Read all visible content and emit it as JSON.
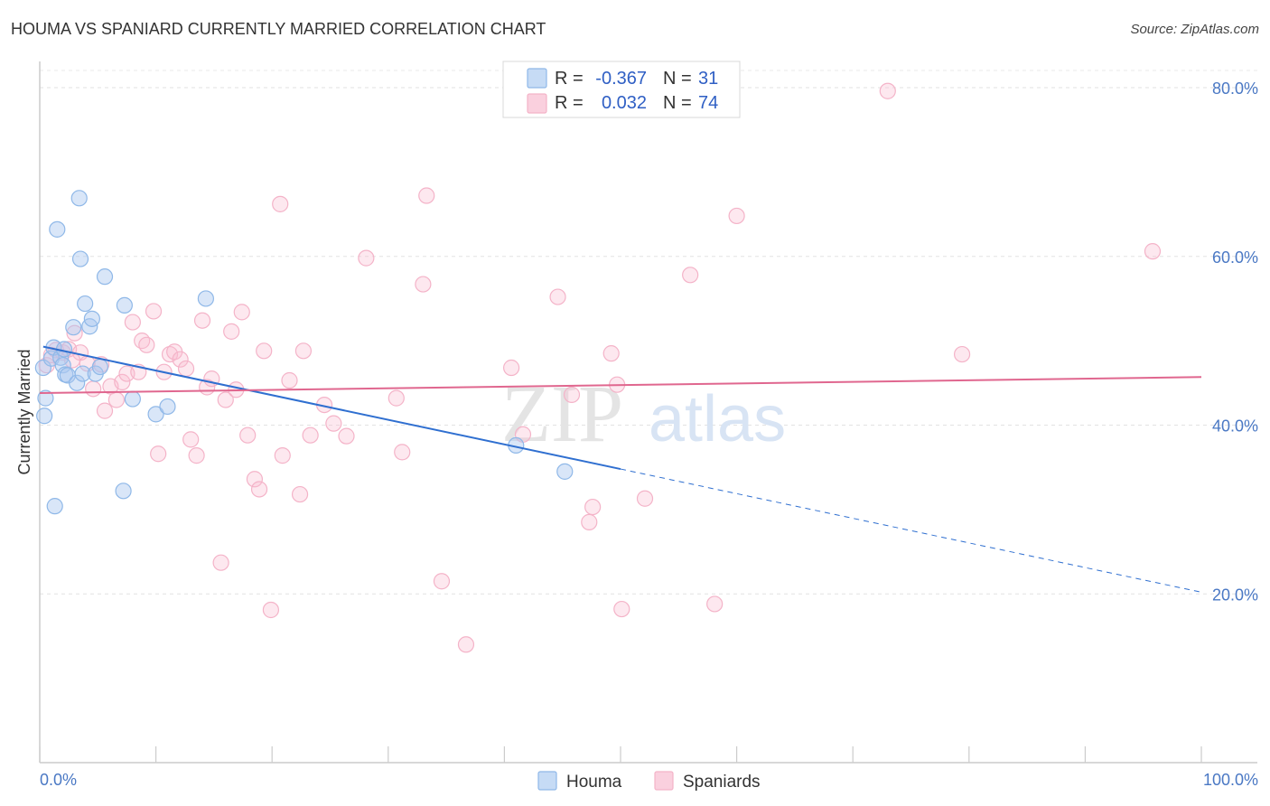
{
  "title": "HOUMA VS SPANIARD CURRENTLY MARRIED CORRELATION CHART",
  "source": "Source: ZipAtlas.com",
  "watermark": {
    "zip": "ZIP",
    "atlas": "atlas"
  },
  "chart_data": {
    "type": "scatter",
    "title": "HOUMA VS SPANIARD CURRENTLY MARRIED CORRELATION CHART",
    "xlabel": "",
    "ylabel": "Currently Married",
    "xlim": [
      0,
      100
    ],
    "ylim": [
      0,
      85
    ],
    "x_tick_labels": [
      {
        "v": 0,
        "label": "0.0%"
      },
      {
        "v": 100,
        "label": "100.0%"
      }
    ],
    "y_tick_labels": [
      {
        "v": 20,
        "label": "20.0%"
      },
      {
        "v": 40,
        "label": "40.0%"
      },
      {
        "v": 60,
        "label": "60.0%"
      },
      {
        "v": 80,
        "label": "80.0%"
      }
    ],
    "legend": {
      "rows": [
        {
          "r_label": "R =",
          "r_value": "-0.367",
          "n_label": "N =",
          "n_value": "31"
        },
        {
          "r_label": "R =",
          "r_value": "0.032",
          "n_label": "N =",
          "n_value": "74"
        }
      ]
    },
    "series": [
      {
        "name": "Houma",
        "color": "#8fb8e8",
        "line_color": "#2f6fd0",
        "trend": {
          "x0": 0.3,
          "y0": 49.3,
          "x1": 50,
          "y1": 34.8,
          "dash_to_x": 100,
          "dash_to_y": 20.2
        },
        "points": [
          [
            0.3,
            46.8
          ],
          [
            0.4,
            41.1
          ],
          [
            0.5,
            43.2
          ],
          [
            1.0,
            47.9
          ],
          [
            1.2,
            49.2
          ],
          [
            1.3,
            30.4
          ],
          [
            1.5,
            63.2
          ],
          [
            1.8,
            48.0
          ],
          [
            2.0,
            47.1
          ],
          [
            2.2,
            46.0
          ],
          [
            2.4,
            45.9
          ],
          [
            2.9,
            51.6
          ],
          [
            3.2,
            45.0
          ],
          [
            3.4,
            66.9
          ],
          [
            3.5,
            59.7
          ],
          [
            3.7,
            46.1
          ],
          [
            3.9,
            54.4
          ],
          [
            4.3,
            51.7
          ],
          [
            4.5,
            52.6
          ],
          [
            4.8,
            46.1
          ],
          [
            5.2,
            46.9
          ],
          [
            5.6,
            57.6
          ],
          [
            7.2,
            32.2
          ],
          [
            7.3,
            54.2
          ],
          [
            8.0,
            43.1
          ],
          [
            10.0,
            41.3
          ],
          [
            11.0,
            42.2
          ],
          [
            14.3,
            55.0
          ],
          [
            41.0,
            37.6
          ],
          [
            45.2,
            34.5
          ],
          [
            2.1,
            49.0
          ]
        ]
      },
      {
        "name": "Spaniards",
        "color": "#f4b3c8",
        "line_color": "#e0678f",
        "trend": {
          "x0": 0,
          "y0": 43.8,
          "x1": 100,
          "y1": 45.7
        },
        "points": [
          [
            0.6,
            47.1
          ],
          [
            1.4,
            48.9
          ],
          [
            2.0,
            48.6
          ],
          [
            2.5,
            49.0
          ],
          [
            3.0,
            50.9
          ],
          [
            3.5,
            48.6
          ],
          [
            4.1,
            47.3
          ],
          [
            4.6,
            44.3
          ],
          [
            5.3,
            47.2
          ],
          [
            5.6,
            41.7
          ],
          [
            6.1,
            44.6
          ],
          [
            6.6,
            43.0
          ],
          [
            7.1,
            45.1
          ],
          [
            7.5,
            46.1
          ],
          [
            8.0,
            52.2
          ],
          [
            8.5,
            46.3
          ],
          [
            8.8,
            50.0
          ],
          [
            9.2,
            49.5
          ],
          [
            9.8,
            53.5
          ],
          [
            10.2,
            36.6
          ],
          [
            10.7,
            46.3
          ],
          [
            11.2,
            48.4
          ],
          [
            11.6,
            48.7
          ],
          [
            12.1,
            47.8
          ],
          [
            12.6,
            46.7
          ],
          [
            13.0,
            38.3
          ],
          [
            13.5,
            36.4
          ],
          [
            14.0,
            52.4
          ],
          [
            14.4,
            44.5
          ],
          [
            14.8,
            45.5
          ],
          [
            15.6,
            23.7
          ],
          [
            16.0,
            43.0
          ],
          [
            16.5,
            51.1
          ],
          [
            16.9,
            44.2
          ],
          [
            17.4,
            53.4
          ],
          [
            17.9,
            38.8
          ],
          [
            18.5,
            33.6
          ],
          [
            18.9,
            32.4
          ],
          [
            19.3,
            48.8
          ],
          [
            19.9,
            18.1
          ],
          [
            20.7,
            66.2
          ],
          [
            20.9,
            36.4
          ],
          [
            21.5,
            45.3
          ],
          [
            22.4,
            31.8
          ],
          [
            22.7,
            48.8
          ],
          [
            23.3,
            38.8
          ],
          [
            24.5,
            42.4
          ],
          [
            25.3,
            40.2
          ],
          [
            26.4,
            38.7
          ],
          [
            28.1,
            59.8
          ],
          [
            30.7,
            43.2
          ],
          [
            31.2,
            36.8
          ],
          [
            33.0,
            56.7
          ],
          [
            33.3,
            67.2
          ],
          [
            34.6,
            21.5
          ],
          [
            36.7,
            14.0
          ],
          [
            40.6,
            46.8
          ],
          [
            41.6,
            38.9
          ],
          [
            44.6,
            55.2
          ],
          [
            45.8,
            43.6
          ],
          [
            47.3,
            28.5
          ],
          [
            47.6,
            30.3
          ],
          [
            49.2,
            48.5
          ],
          [
            49.7,
            44.8
          ],
          [
            50.1,
            18.2
          ],
          [
            52.1,
            31.3
          ],
          [
            56.0,
            57.8
          ],
          [
            58.1,
            18.8
          ],
          [
            60.0,
            64.8
          ],
          [
            73.0,
            79.6
          ],
          [
            79.4,
            48.4
          ],
          [
            95.8,
            60.6
          ],
          [
            1.0,
            48.3
          ],
          [
            2.8,
            47.7
          ]
        ]
      }
    ]
  },
  "bottom_legend": [
    {
      "label": "Houma",
      "color": "#8fb8e8"
    },
    {
      "label": "Spaniards",
      "color": "#f4b3c8"
    }
  ]
}
